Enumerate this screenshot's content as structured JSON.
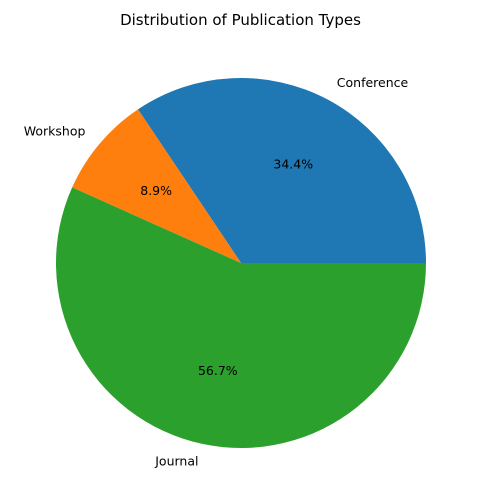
{
  "chart_data": {
    "type": "pie",
    "title": "Distribution of Publication Types",
    "categories": [
      "Conference",
      "Workshop",
      "Journal"
    ],
    "values": [
      34.4,
      8.9,
      56.7
    ],
    "value_labels": [
      "34.4%",
      "8.9%",
      "56.7%"
    ],
    "colors": [
      "#1f77b4",
      "#ff7f0e",
      "#2ca02c"
    ],
    "start_angle_deg": 0,
    "direction": "counterclockwise",
    "legend": "none"
  }
}
